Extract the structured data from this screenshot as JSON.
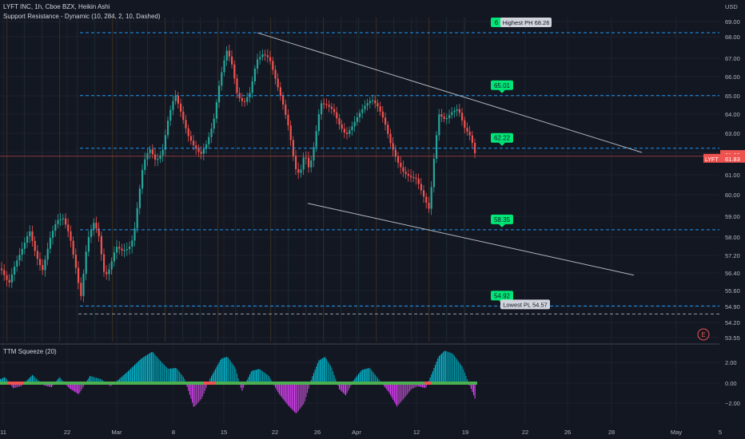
{
  "header": {
    "symbol_line": "LYFT INC, 1h, Cboe BZX, Heikin Ashi",
    "indicator_line": "Support Resistance - Dynamic (10, 284, 2, 10, Dashed)",
    "currency": "USD",
    "oscillator_title": "TTM Squeeze (20)"
  },
  "colors": {
    "background": "#131722",
    "grid": "#1e222d",
    "up": "#26a69a",
    "down": "#ef5350",
    "level_line": "#2196f3",
    "level_label": "#00e676",
    "trend_line": "#b2b5be",
    "hist_up": "#00bcd4",
    "hist_down": "#e040fb",
    "squeeze_on": "#4caf50",
    "squeeze_off": "#ef5350"
  },
  "chart_data": [
    {
      "type": "candlestick",
      "title": "LYFT INC, 1h, Cboe BZX, Heikin Ashi",
      "currency": "USD",
      "x_tick_labels": [
        "11",
        "22",
        "Mar",
        "8",
        "15",
        "22",
        "26",
        "Apr",
        "12",
        "19",
        "22",
        "26",
        "28",
        "May",
        "5"
      ],
      "y_tick_labels": [
        "69.00",
        "68.00",
        "67.00",
        "66.00",
        "65.00",
        "64.00",
        "63.00",
        "62.00",
        "61.00",
        "60.00",
        "59.00",
        "58.00",
        "57.20",
        "56.40",
        "55.60",
        "54.90",
        "54.20",
        "53.55"
      ],
      "ylim": [
        53.55,
        69.4
      ],
      "last_price": {
        "label": "LYFT",
        "value": "61.83",
        "prev_close": "61.89"
      },
      "close_path": [
        [
          0,
          56.6
        ],
        [
          10,
          55.9
        ],
        [
          18,
          56.8
        ],
        [
          28,
          57.6
        ],
        [
          36,
          58.3
        ],
        [
          44,
          57.2
        ],
        [
          52,
          56.5
        ],
        [
          62,
          58.0
        ],
        [
          70,
          58.8
        ],
        [
          78,
          58.9
        ],
        [
          86,
          58.1
        ],
        [
          94,
          56.6
        ],
        [
          100,
          55.3
        ],
        [
          108,
          57.8
        ],
        [
          116,
          58.7
        ],
        [
          122,
          58.2
        ],
        [
          130,
          56.2
        ],
        [
          136,
          56.6
        ],
        [
          144,
          57.6
        ],
        [
          152,
          57.4
        ],
        [
          160,
          57.5
        ],
        [
          166,
          58.0
        ],
        [
          172,
          59.8
        ],
        [
          178,
          61.5
        ],
        [
          186,
          62.2
        ],
        [
          194,
          61.6
        ],
        [
          202,
          62.0
        ],
        [
          210,
          63.9
        ],
        [
          218,
          65.1
        ],
        [
          226,
          64.0
        ],
        [
          234,
          62.9
        ],
        [
          242,
          62.3
        ],
        [
          250,
          61.9
        ],
        [
          258,
          62.5
        ],
        [
          266,
          63.6
        ],
        [
          274,
          65.8
        ],
        [
          282,
          67.4
        ],
        [
          288,
          66.9
        ],
        [
          296,
          65.0
        ],
        [
          304,
          64.6
        ],
        [
          312,
          65.2
        ],
        [
          320,
          66.9
        ],
        [
          328,
          67.2
        ],
        [
          336,
          67.0
        ],
        [
          344,
          65.8
        ],
        [
          352,
          64.7
        ],
        [
          360,
          63.3
        ],
        [
          368,
          61.3
        ],
        [
          374,
          61.0
        ],
        [
          380,
          62.0
        ],
        [
          386,
          61.2
        ],
        [
          392,
          62.4
        ],
        [
          400,
          64.6
        ],
        [
          408,
          64.5
        ],
        [
          416,
          64.2
        ],
        [
          424,
          63.4
        ],
        [
          432,
          62.9
        ],
        [
          440,
          63.4
        ],
        [
          448,
          64.0
        ],
        [
          456,
          64.5
        ],
        [
          464,
          64.8
        ],
        [
          472,
          64.4
        ],
        [
          480,
          63.6
        ],
        [
          488,
          62.4
        ],
        [
          496,
          61.6
        ],
        [
          504,
          61.1
        ],
        [
          512,
          60.9
        ],
        [
          520,
          60.8
        ],
        [
          528,
          60.0
        ],
        [
          536,
          59.3
        ],
        [
          542,
          61.8
        ],
        [
          548,
          64.0
        ],
        [
          556,
          63.7
        ],
        [
          564,
          64.1
        ],
        [
          572,
          64.3
        ],
        [
          580,
          63.3
        ],
        [
          588,
          62.8
        ],
        [
          594,
          61.8
        ]
      ],
      "levels": [
        {
          "value": 68.26,
          "label": "Highest PH 68.26",
          "badge": "6"
        },
        {
          "value": 65.01,
          "label": "65.01"
        },
        {
          "value": 62.22,
          "label": "62.22"
        },
        {
          "value": 58.35,
          "label": "58.35"
        },
        {
          "value": 54.92,
          "label": "54.92"
        },
        {
          "value": 54.57,
          "label": "Lowest PL 54.57"
        }
      ],
      "trend_lines": [
        {
          "from": [
            322,
            68.26
          ],
          "to": [
            803,
            62.0
          ]
        },
        {
          "from": [
            385,
            59.6
          ],
          "to": [
            793,
            56.3
          ]
        }
      ],
      "event_marker": "E"
    },
    {
      "type": "bar",
      "title": "TTM Squeeze (20)",
      "y_tick_labels": [
        "2.00",
        "0.00",
        "−2.00"
      ],
      "ylim": [
        -3.2,
        3.4
      ],
      "momentum_path": [
        [
          0,
          0.4
        ],
        [
          6,
          0.6
        ],
        [
          16,
          -0.5
        ],
        [
          26,
          -0.3
        ],
        [
          40,
          0.8
        ],
        [
          54,
          -0.2
        ],
        [
          64,
          -0.4
        ],
        [
          74,
          0.6
        ],
        [
          86,
          -0.5
        ],
        [
          98,
          -1.1
        ],
        [
          112,
          0.7
        ],
        [
          126,
          0.4
        ],
        [
          138,
          -0.3
        ],
        [
          150,
          0.5
        ],
        [
          160,
          1.2
        ],
        [
          176,
          2.4
        ],
        [
          190,
          3.1
        ],
        [
          200,
          2.2
        ],
        [
          210,
          1.4
        ],
        [
          220,
          1.5
        ],
        [
          230,
          0.5
        ],
        [
          242,
          -2.4
        ],
        [
          252,
          -1.5
        ],
        [
          262,
          0.4
        ],
        [
          276,
          2.4
        ],
        [
          284,
          2.6
        ],
        [
          294,
          1.5
        ],
        [
          302,
          -0.8
        ],
        [
          314,
          1.2
        ],
        [
          324,
          1.4
        ],
        [
          336,
          0.7
        ],
        [
          348,
          -1.0
        ],
        [
          360,
          -2.2
        ],
        [
          370,
          -3.0
        ],
        [
          380,
          -2.0
        ],
        [
          390,
          0.6
        ],
        [
          398,
          2.2
        ],
        [
          406,
          2.6
        ],
        [
          414,
          1.6
        ],
        [
          424,
          -0.6
        ],
        [
          432,
          -1.2
        ],
        [
          442,
          0.3
        ],
        [
          452,
          1.3
        ],
        [
          462,
          1.5
        ],
        [
          474,
          0.3
        ],
        [
          486,
          -0.9
        ],
        [
          496,
          -2.3
        ],
        [
          506,
          -1.4
        ],
        [
          514,
          -0.6
        ],
        [
          522,
          -0.3
        ],
        [
          532,
          -0.5
        ],
        [
          540,
          1.0
        ],
        [
          548,
          2.6
        ],
        [
          556,
          3.2
        ],
        [
          566,
          2.9
        ],
        [
          578,
          1.6
        ],
        [
          588,
          -0.4
        ],
        [
          594,
          -1.6
        ]
      ]
    }
  ]
}
